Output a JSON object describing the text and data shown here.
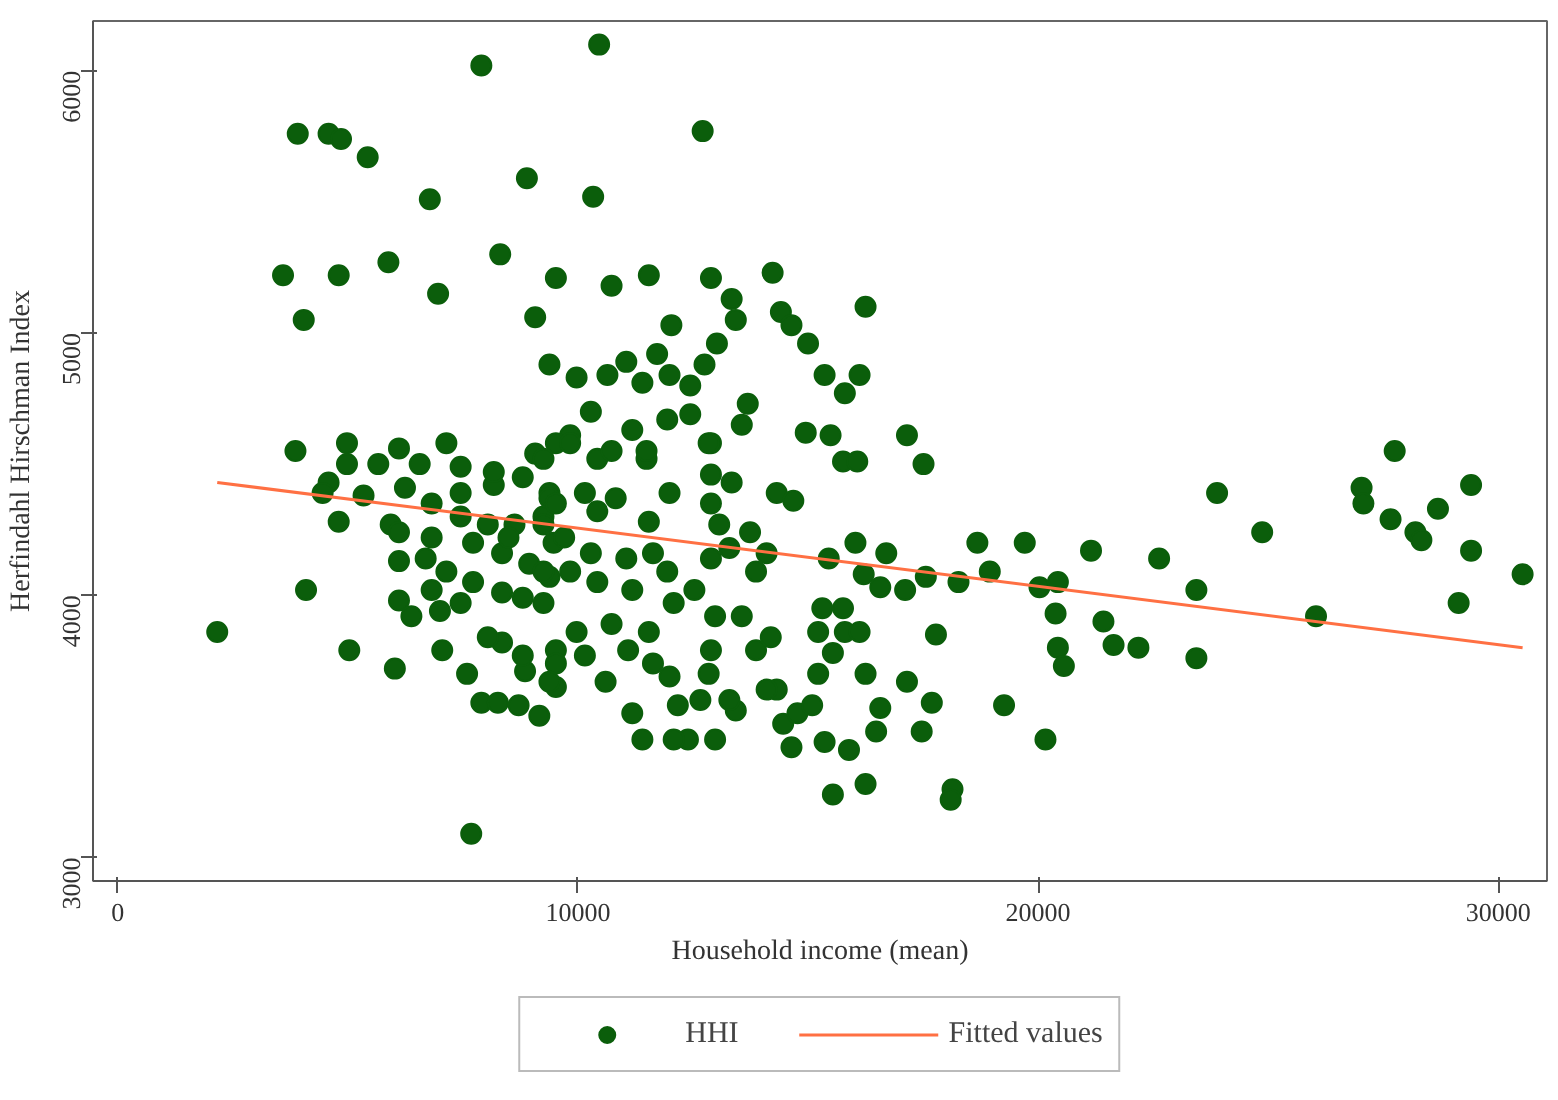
{
  "chart_data": {
    "type": "scatter",
    "xlabel": "Household income (mean)",
    "ylabel": "Herfindahl Hirschman Index",
    "xlim": [
      -540,
      31060
    ],
    "ylim": [
      2910,
      6190
    ],
    "xticks": [
      0,
      10000,
      20000,
      30000
    ],
    "yticks": [
      3000,
      4000,
      5000,
      6000
    ],
    "grid": false,
    "legend": "bottom",
    "series": [
      {
        "name": "HHI",
        "marker": "circle",
        "color": "#0b5e0b",
        "x": [
          7900,
          10460,
          3910,
          4580,
          4850,
          5430,
          6780,
          8890,
          10330,
          12710,
          3590,
          4800,
          5880,
          6960,
          8310,
          9520,
          4040,
          10730,
          11540,
          12890,
          14230,
          13340,
          13430,
          12030,
          14410,
          14640,
          16250,
          15000,
          15360,
          15800,
          16120,
          9070,
          13020,
          12750,
          12440,
          11990,
          11400,
          13690,
          13560,
          12440,
          14950,
          15490,
          17150,
          15760,
          16070,
          17510,
          11720,
          11050,
          10640,
          9970,
          9380,
          10280,
          9830,
          11180,
          11940,
          12890,
          10420,
          11490,
          3860,
          4980,
          4980,
          5660,
          4580,
          4450,
          5340,
          4800,
          5930,
          4090,
          2160,
          5030,
          6020,
          7680,
          6110,
          6380,
          7000,
          7050,
          7590,
          7900,
          8260,
          8710,
          9160,
          8850,
          9520,
          8350,
          8040,
          6110,
          6690,
          7140,
          7720,
          8350,
          8800,
          9250,
          9380,
          8940,
          8350,
          7720,
          6820,
          6110,
          6820,
          7450,
          8170,
          8800,
          9380,
          9250,
          8620,
          8040,
          7450,
          6240,
          6560,
          7450,
          8170,
          9070,
          9520,
          6110,
          7140,
          8490,
          9470,
          7450,
          6820,
          9520,
          8800,
          9250,
          9830,
          10730,
          11490,
          12840,
          12890,
          13340,
          11990,
          10820,
          10150,
          9380,
          10420,
          9520,
          11540,
          12890,
          13070,
          14320,
          14680,
          13740,
          13290,
          12890,
          14100,
          13870,
          15450,
          16030,
          16700,
          16210,
          16570,
          17110,
          17560,
          18270,
          18680,
          18950,
          19710,
          21150,
          20030,
          20430,
          20380,
          21420,
          21640,
          22180,
          20430,
          20560,
          20160,
          19260,
          17780,
          17690,
          17150,
          17470,
          16570,
          16480,
          16250,
          15890,
          16250,
          15540,
          15360,
          15220,
          15540,
          15800,
          16120,
          15760,
          15310,
          15220,
          14640,
          14460,
          14770,
          15090,
          14320,
          14100,
          13430,
          13290,
          12980,
          12390,
          12080,
          11400,
          11180,
          12170,
          12660,
          11990,
          12840,
          13870,
          12890,
          11630,
          11090,
          10600,
          10150,
          9520,
          9380,
          18140,
          18100,
          14190,
          13560,
          12980,
          12080,
          11540,
          10730,
          9970,
          11180,
          10420,
          9830,
          11940,
          12530,
          9250,
          11050,
          10280,
          11630,
          9700,
          9250,
          22630,
          23890,
          24870,
          23440,
          23440,
          26040,
          27030,
          27070,
          27750,
          27660,
          28200,
          28330,
          28690,
          29410,
          29410,
          29140,
          30530
        ],
        "values": [
          6020,
          6100,
          5760,
          5760,
          5740,
          5670,
          5510,
          5590,
          5520,
          5770,
          5220,
          5220,
          5270,
          5150,
          5300,
          5210,
          5050,
          5180,
          5220,
          5210,
          5230,
          5130,
          5050,
          5030,
          5080,
          5030,
          5100,
          4960,
          4840,
          4770,
          4840,
          5060,
          4960,
          4880,
          4800,
          4840,
          4810,
          4730,
          4650,
          4690,
          4620,
          4610,
          4610,
          4510,
          4510,
          4500,
          4920,
          4890,
          4840,
          4830,
          4880,
          4700,
          4610,
          4630,
          4670,
          4580,
          4520,
          4520,
          4550,
          4580,
          4500,
          4500,
          4430,
          4390,
          4380,
          4280,
          4270,
          4020,
          3860,
          3790,
          3720,
          3090,
          3980,
          3920,
          3940,
          3790,
          3700,
          3590,
          3590,
          3580,
          3540,
          3710,
          3650,
          3820,
          3840,
          4130,
          4140,
          4090,
          4050,
          4010,
          3990,
          3970,
          4070,
          4120,
          4160,
          4200,
          4220,
          4240,
          4350,
          4390,
          4420,
          4450,
          4390,
          4300,
          4270,
          4270,
          4300,
          4410,
          4500,
          4490,
          4470,
          4540,
          4580,
          4560,
          4580,
          4220,
          4200,
          3970,
          4020,
          3790,
          3770,
          4520,
          4580,
          4550,
          4550,
          4580,
          4460,
          4430,
          4390,
          4370,
          4390,
          4370,
          4320,
          4350,
          4280,
          4350,
          4270,
          4390,
          4360,
          4240,
          4180,
          4140,
          4160,
          4090,
          4140,
          4200,
          4160,
          4080,
          4030,
          4020,
          4070,
          4050,
          4200,
          4090,
          4200,
          4170,
          4030,
          4050,
          3930,
          3900,
          3810,
          3800,
          3800,
          3730,
          3450,
          3580,
          3850,
          3590,
          3670,
          3480,
          3570,
          3480,
          3700,
          3410,
          3280,
          3240,
          3440,
          3700,
          3780,
          3860,
          3860,
          3950,
          3950,
          3860,
          3420,
          3510,
          3550,
          3580,
          3640,
          3640,
          3560,
          3600,
          3450,
          3450,
          3450,
          3450,
          3550,
          3580,
          3600,
          3690,
          3700,
          3790,
          3790,
          3740,
          3790,
          3670,
          3770,
          3740,
          3670,
          3260,
          3220,
          3840,
          3920,
          3920,
          3970,
          3860,
          3890,
          3860,
          4020,
          4050,
          4090,
          4090,
          4020,
          4090,
          4140,
          4160,
          4160,
          4220,
          4270,
          4140,
          4390,
          4240,
          4020,
          3760,
          3920,
          4410,
          4350,
          4550,
          4290,
          4240,
          4210,
          4330,
          4420,
          4170,
          3970,
          4080
        ]
      },
      {
        "name": "Fitted values",
        "type": "line",
        "color": "#ff7043",
        "x": [
          2160,
          30530
        ],
        "values": [
          4430,
          3800
        ]
      }
    ]
  }
}
